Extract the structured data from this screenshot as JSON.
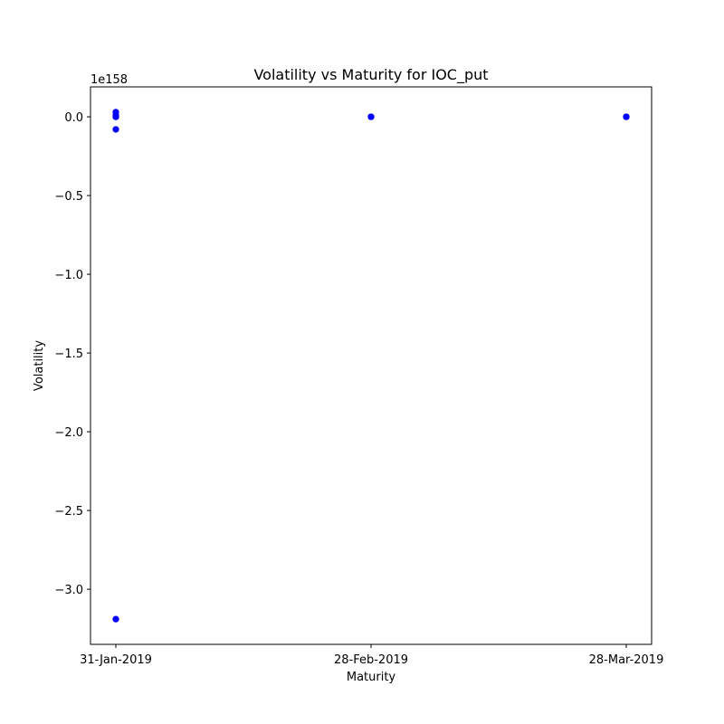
{
  "chart_data": {
    "type": "scatter",
    "title": "Volatility vs Maturity for IOC_put",
    "xlabel": "Maturity",
    "ylabel": "Volatility",
    "y_offset_label": "1e158",
    "y_multiplier": "1e158",
    "x_categories": [
      "31-Jan-2019",
      "28-Feb-2019",
      "28-Mar-2019"
    ],
    "y_ticks": [
      {
        "value": 0.0,
        "label": "0.0"
      },
      {
        "value": -0.5,
        "label": "−0.5"
      },
      {
        "value": -1.0,
        "label": "−1.0"
      },
      {
        "value": -1.5,
        "label": "−1.5"
      },
      {
        "value": -2.0,
        "label": "−2.0"
      },
      {
        "value": -2.5,
        "label": "−2.5"
      },
      {
        "value": -3.0,
        "label": "−3.0"
      }
    ],
    "ylim": [
      -3.35,
      0.19
    ],
    "grid": false,
    "marker_color": "#0000ff",
    "points": [
      {
        "x": "31-Jan-2019",
        "y": 0.03
      },
      {
        "x": "31-Jan-2019",
        "y": 0.01
      },
      {
        "x": "31-Jan-2019",
        "y": 0.0
      },
      {
        "x": "31-Jan-2019",
        "y": 0.0
      },
      {
        "x": "31-Jan-2019",
        "y": 0.0
      },
      {
        "x": "31-Jan-2019",
        "y": -0.08
      },
      {
        "x": "31-Jan-2019",
        "y": -3.19
      },
      {
        "x": "28-Feb-2019",
        "y": 0.0
      },
      {
        "x": "28-Feb-2019",
        "y": 0.0
      },
      {
        "x": "28-Feb-2019",
        "y": 0.0
      },
      {
        "x": "28-Mar-2019",
        "y": 0.0
      },
      {
        "x": "28-Mar-2019",
        "y": 0.0
      },
      {
        "x": "28-Mar-2019",
        "y": 0.0
      }
    ]
  }
}
